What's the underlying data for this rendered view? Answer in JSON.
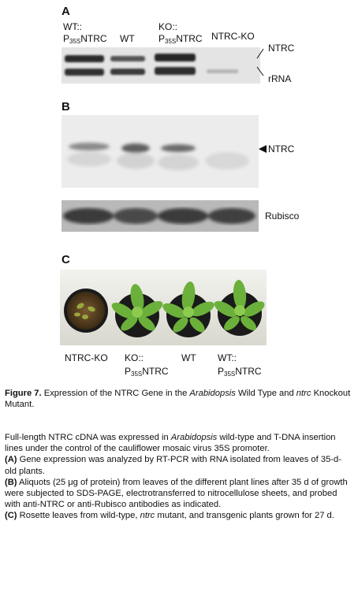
{
  "panelA": {
    "letter": "A",
    "lanes": [
      {
        "line1": "WT::",
        "line2_main": "P",
        "line2_sub": "35S",
        "line2_tail": "NTRC"
      },
      {
        "line1": "",
        "line2_main": "WT",
        "line2_sub": "",
        "line2_tail": ""
      },
      {
        "line1": "KO::",
        "line2_main": "P",
        "line2_sub": "35S",
        "line2_tail": "NTRC"
      },
      {
        "line1": "",
        "line2_main": "NTRC-KO",
        "line2_sub": "",
        "line2_tail": ""
      }
    ],
    "band_labels": [
      "NTRC",
      "rRNA"
    ]
  },
  "panelB": {
    "letter": "B",
    "ntrc_label": "NTRC",
    "rubisco_label": "Rubisco"
  },
  "panelC": {
    "letter": "C",
    "plant_labels": [
      {
        "line1": "NTRC-KO",
        "line2_main": "",
        "line2_sub": "",
        "line2_tail": ""
      },
      {
        "line1": "KO::",
        "line2_main": "P",
        "line2_sub": "35S",
        "line2_tail": "NTRC"
      },
      {
        "line1": "WT",
        "line2_main": "",
        "line2_sub": "",
        "line2_tail": ""
      },
      {
        "line1": "WT::",
        "line2_main": "P",
        "line2_sub": "35S",
        "line2_tail": "NTRC"
      }
    ]
  },
  "caption": {
    "figure_label": "Figure 7.",
    "title_part1": "Expression of the NTRC Gene in the",
    "title_italic1": "Arabidopsis",
    "title_part2": "Wild Type and",
    "title_italic2": "ntrc",
    "title_part3": "Knockout Mutant.",
    "intro_part1": "Full-length NTRC cDNA was expressed in",
    "intro_italic": "Arabidopsis",
    "intro_part2": "wild-type and T-DNA insertion lines under the control of the cauliflower mosaic virus 35S promoter.",
    "a_label": "(A)",
    "a_text": "Gene expression was analyzed by RT-PCR with RNA isolated from leaves of 35-d-old plants.",
    "b_label": "(B)",
    "b_text1": "Aliquots (25",
    "b_mu": "μg",
    "b_text2": "of protein) from leaves of the different plant lines after 35 d of growth were subjected to SDS-PAGE, electrotransferred to nitrocellulose sheets, and probed with anti-NTRC or anti-Rubisco antibodies as indicated.",
    "c_label": "(C)",
    "c_text1": "Rosette leaves from wild-type,",
    "c_italic": "ntrc",
    "c_text2": "mutant, and transgenic plants grown for 27 d."
  }
}
